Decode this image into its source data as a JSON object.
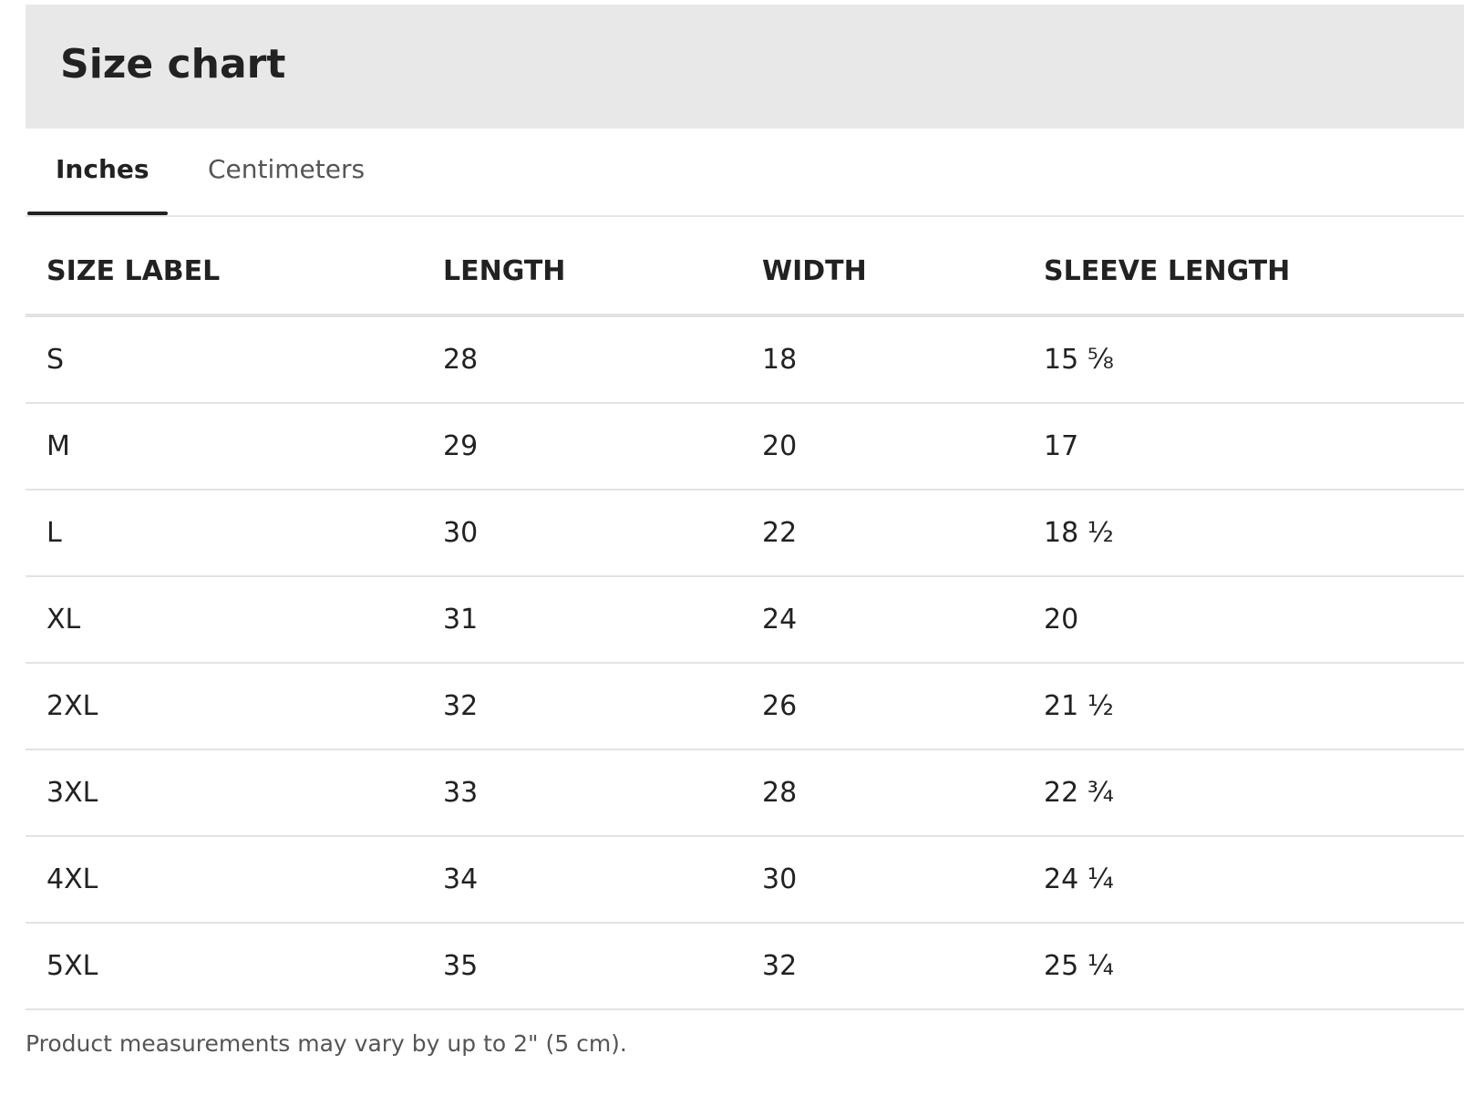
{
  "header": {
    "title": "Size chart"
  },
  "tabs": [
    "Inches",
    "Centimeters"
  ],
  "table": {
    "columns": [
      "SIZE LABEL",
      "LENGTH",
      "WIDTH",
      "SLEEVE LENGTH"
    ],
    "rows": [
      [
        "S",
        "28",
        "18",
        "15 ⅝"
      ],
      [
        "M",
        "29",
        "20",
        "17"
      ],
      [
        "L",
        "30",
        "22",
        "18 ½"
      ],
      [
        "XL",
        "31",
        "24",
        "20"
      ],
      [
        "2XL",
        "32",
        "26",
        "21 ½"
      ],
      [
        "3XL",
        "33",
        "28",
        "22 ¾"
      ],
      [
        "4XL",
        "34",
        "30",
        "24 ¼"
      ],
      [
        "5XL",
        "35",
        "32",
        "25 ¼"
      ]
    ]
  },
  "note": "Product measurements may vary by up to 2\" (5 cm)."
}
